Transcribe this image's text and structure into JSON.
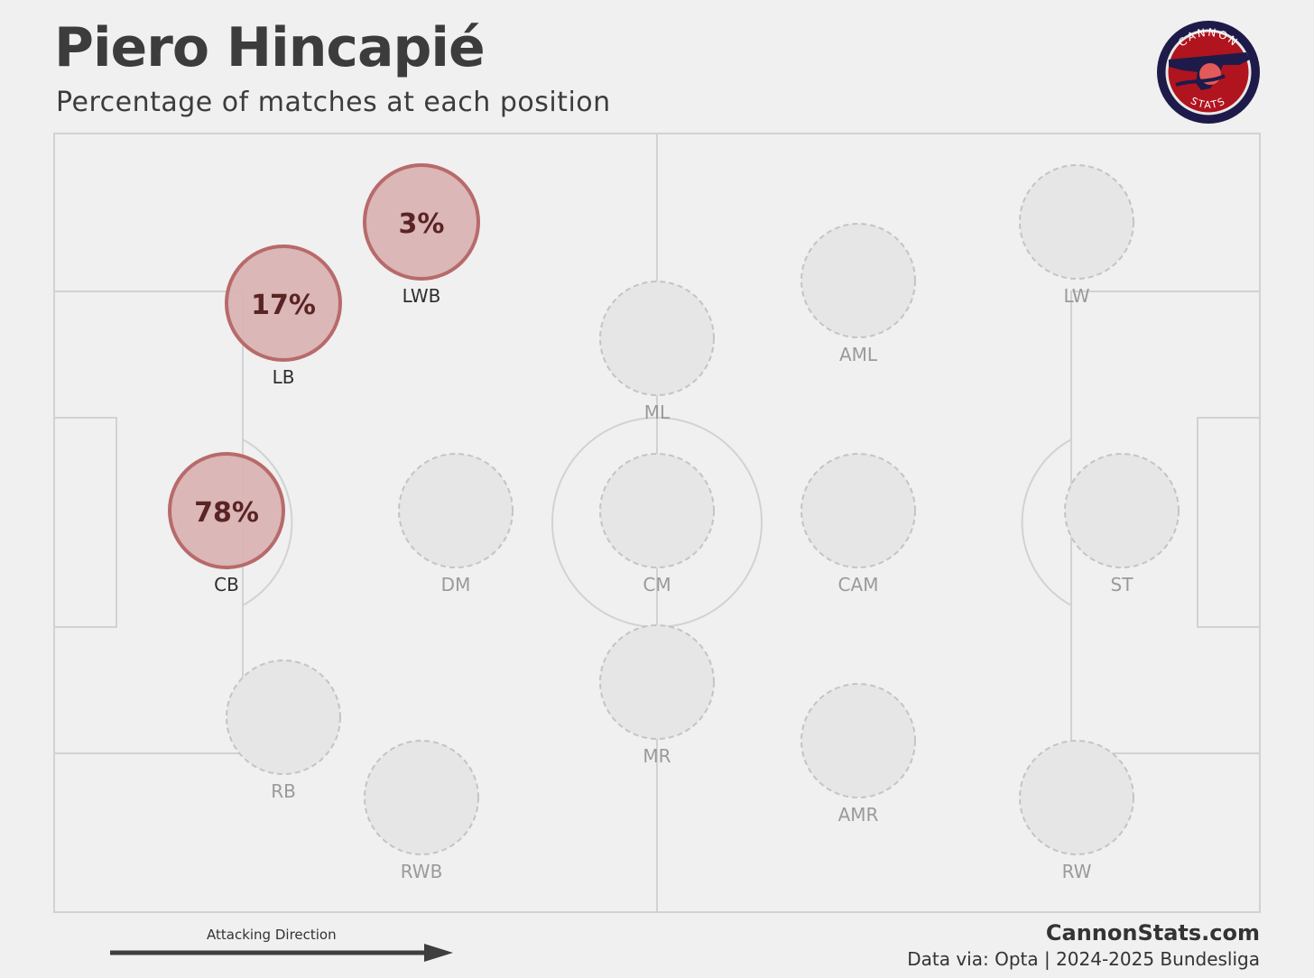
{
  "header": {
    "title": "Piero Hincapié",
    "subtitle": "Percentage of matches at each position"
  },
  "logo": {
    "top_text": "CANNON",
    "bottom_text": "STATS"
  },
  "chart_data": {
    "type": "scatter",
    "positions": [
      {
        "code": "CB",
        "value": 78,
        "label": "78%"
      },
      {
        "code": "LB",
        "value": 17,
        "label": "17%"
      },
      {
        "code": "LWB",
        "value": 3,
        "label": "3%"
      },
      {
        "code": "RB",
        "value": 0,
        "label": ""
      },
      {
        "code": "RWB",
        "value": 0,
        "label": ""
      },
      {
        "code": "DM",
        "value": 0,
        "label": ""
      },
      {
        "code": "ML",
        "value": 0,
        "label": ""
      },
      {
        "code": "CM",
        "value": 0,
        "label": ""
      },
      {
        "code": "MR",
        "value": 0,
        "label": ""
      },
      {
        "code": "AML",
        "value": 0,
        "label": ""
      },
      {
        "code": "CAM",
        "value": 0,
        "label": ""
      },
      {
        "code": "AMR",
        "value": 0,
        "label": ""
      },
      {
        "code": "LW",
        "value": 0,
        "label": ""
      },
      {
        "code": "ST",
        "value": 0,
        "label": ""
      },
      {
        "code": "RW",
        "value": 0,
        "label": ""
      }
    ]
  },
  "footer": {
    "direction_label": "Attacking Direction",
    "site": "CannonStats.com",
    "source": "Data via: Opta | 2024-2025 Bundesliga"
  },
  "colors": {
    "active_fill": "#d9b3b3",
    "active_stroke": "#b86a6a",
    "active_text": "#5a2424",
    "inactive_fill": "#e6e6e6",
    "inactive_stroke": "#c4c4c4",
    "inactive_text": "#9a9a9a",
    "pitch_line": "#d2d2d2"
  }
}
